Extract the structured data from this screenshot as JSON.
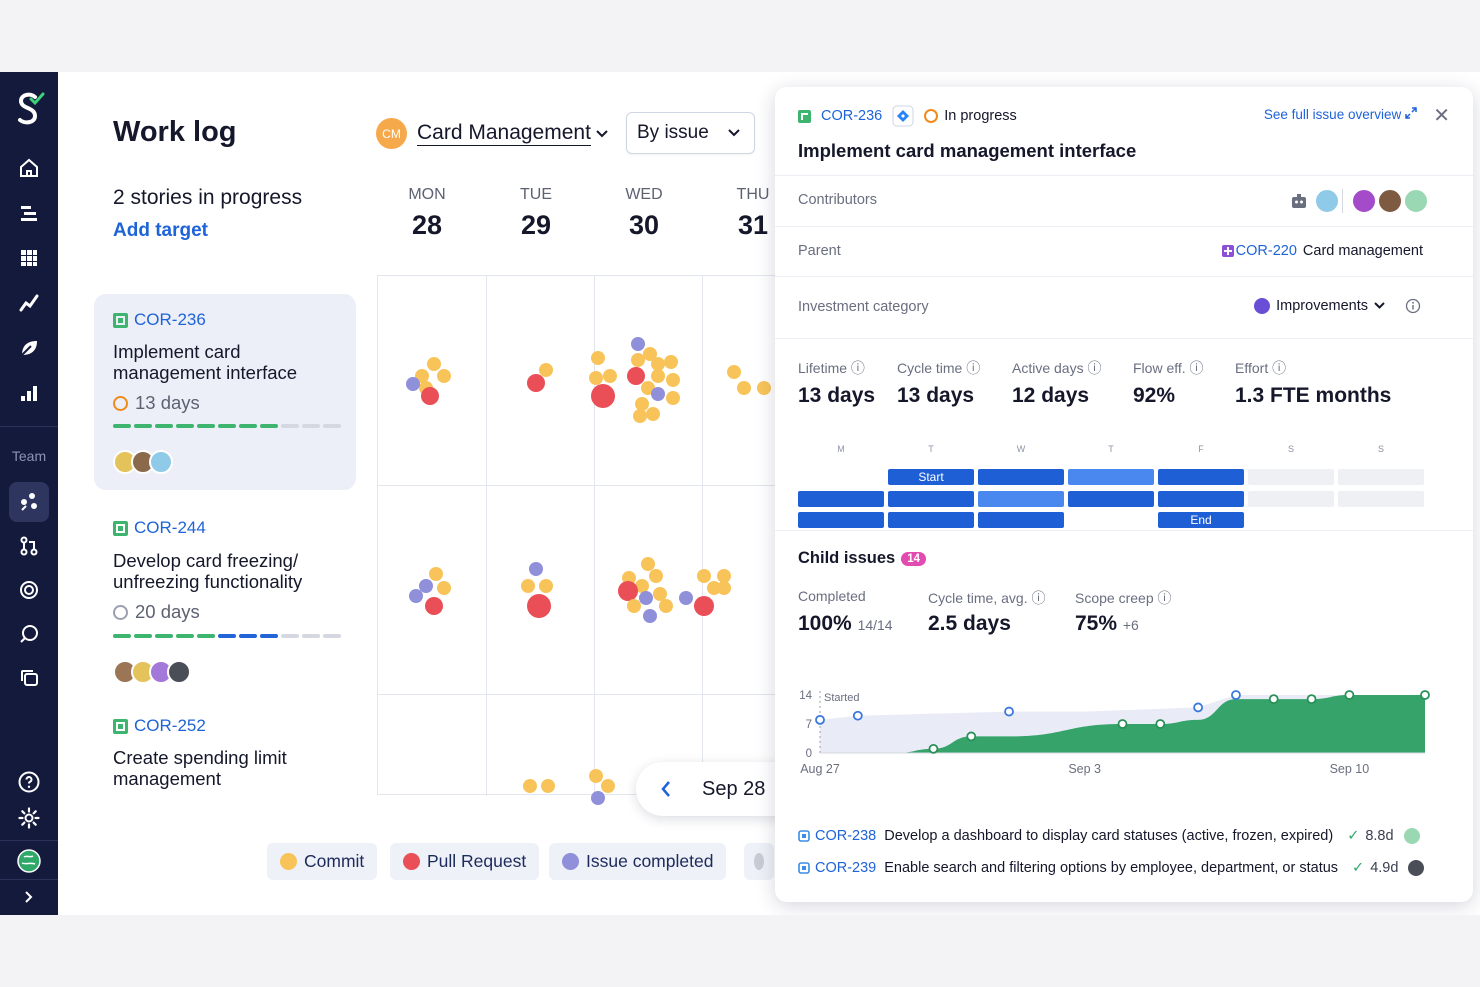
{
  "sidebar": {
    "team_label": "Team",
    "icons": [
      "logo-icon",
      "home-icon",
      "list-icon",
      "grid-icon",
      "trend-icon",
      "leaf-icon",
      "bar-chart-icon",
      "team-icon",
      "pull-request-icon",
      "target-icon",
      "chat-icon",
      "layers-icon",
      "help-icon",
      "gear-icon",
      "globe-icon",
      "chevron-right-icon"
    ]
  },
  "header": {
    "title": "Work log",
    "stories": "2 stories in progress",
    "add_target": "Add target",
    "project_initials": "CM",
    "project_name": "Card Management",
    "group_by": "By issue"
  },
  "days": [
    {
      "name": "MON",
      "date": "28"
    },
    {
      "name": "TUE",
      "date": "29"
    },
    {
      "name": "WED",
      "date": "30"
    },
    {
      "name": "THU",
      "date": "31"
    }
  ],
  "stories": [
    {
      "key": "COR-236",
      "title_l1": "Implement card",
      "title_l2": "management interface",
      "duration": "13 days",
      "status": "in-progress"
    },
    {
      "key": "COR-244",
      "title_l1": "Develop card freezing/",
      "title_l2": "unfreezing functionality",
      "duration": "20 days",
      "status": "not-started"
    },
    {
      "key": "COR-252",
      "title_l1": "Create spending limit",
      "title_l2": "management"
    }
  ],
  "legend": {
    "commit": "Commit",
    "pull_request": "Pull Request",
    "issue_completed": "Issue completed",
    "colors": {
      "commit": "#f8c45a",
      "pull_request": "#ea4e57",
      "issue_completed": "#8f8fda"
    }
  },
  "date_nav": {
    "label": "Sep 28"
  },
  "panel": {
    "key": "COR-236",
    "status": "In progress",
    "title": "Implement card management interface",
    "overview_link": "See full issue overview",
    "contributors_label": "Contributors",
    "parent_label": "Parent",
    "parent_key": "COR-220",
    "parent_title": "Card management",
    "investment_label": "Investment category",
    "investment_value": "Improvements",
    "metrics": [
      {
        "label": "Lifetime",
        "value": "13 days"
      },
      {
        "label": "Cycle time",
        "value": "13 days"
      },
      {
        "label": "Active days",
        "value": "12 days"
      },
      {
        "label": "Flow eff.",
        "value": "92%"
      },
      {
        "label": "Effort",
        "value": "1.3 FTE months"
      }
    ],
    "weekdays": [
      "M",
      "T",
      "W",
      "T",
      "F",
      "S",
      "S"
    ],
    "start_label": "Start",
    "end_label": "End",
    "child_title": "Child issues",
    "child_count": "14",
    "child_metrics": {
      "completed_label": "Completed",
      "completed": "100%",
      "completed_sub": "14/14",
      "cycle_label": "Cycle time, avg.",
      "cycle": "2.5 days",
      "scope_label": "Scope creep",
      "scope": "75%",
      "scope_sub": "+6"
    },
    "child_issues": [
      {
        "key": "COR-238",
        "title": "Develop a dashboard to display card statuses (active, frozen, expired)",
        "time": "8.8d"
      },
      {
        "key": "COR-239",
        "title": "Enable search and filtering options by employee, department, or status",
        "time": "4.9d"
      }
    ]
  },
  "chart_data": {
    "type": "area",
    "title": "",
    "xlabel": "",
    "ylabel": "",
    "x_ticks": [
      "Aug 27",
      "Sep 3",
      "Sep 10"
    ],
    "y_ticks": [
      "0",
      "7",
      "14"
    ],
    "ylim": [
      0,
      14
    ],
    "annotation": "Started",
    "series": [
      {
        "name": "",
        "values": [
          {
            "x": "Aug 27",
            "y": 0
          },
          {
            "x": "Aug 28",
            "y": 0
          },
          {
            "x": "Aug 29",
            "y": 0
          },
          {
            "x": "Aug 30",
            "y": 1
          },
          {
            "x": "Aug 31",
            "y": 4
          },
          {
            "x": "Sep 1",
            "y": 4
          },
          {
            "x": "Sep 4",
            "y": 7
          },
          {
            "x": "Sep 5",
            "y": 7
          },
          {
            "x": "Sep 6",
            "y": 8
          },
          {
            "x": "Sep 7",
            "y": 13
          },
          {
            "x": "Sep 8",
            "y": 13
          },
          {
            "x": "Sep 9",
            "y": 13
          },
          {
            "x": "Sep 10",
            "y": 14
          },
          {
            "x": "Sep 12",
            "y": 14
          }
        ]
      },
      {
        "name": "",
        "values": [
          {
            "x": "Aug 27",
            "y": 8
          },
          {
            "x": "Aug 28",
            "y": 9
          },
          {
            "x": "Sep 1",
            "y": 10
          },
          {
            "x": "Sep 3",
            "y": 10
          },
          {
            "x": "Sep 6",
            "y": 11
          },
          {
            "x": "Sep 7",
            "y": 14
          },
          {
            "x": "Sep 12",
            "y": 14
          }
        ]
      }
    ]
  }
}
